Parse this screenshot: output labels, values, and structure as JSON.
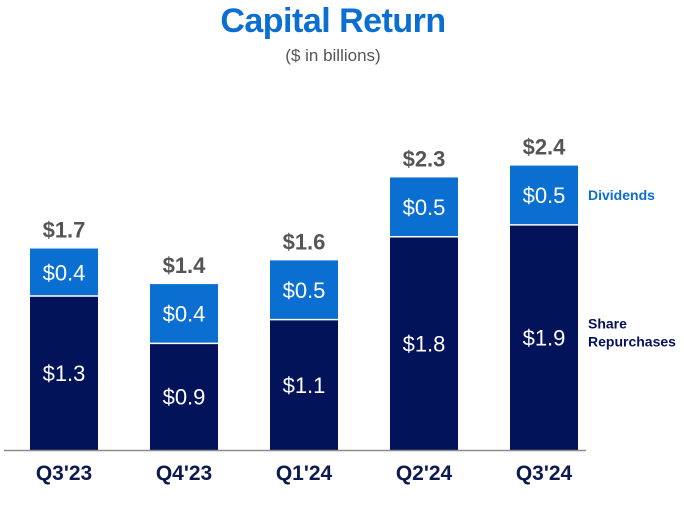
{
  "header": {
    "title": "Capital Return",
    "subtitle": "($ in billions)"
  },
  "colors": {
    "share_repurchases": "#03135a",
    "dividends": "#0a6fd1",
    "axis": "#8c8c8c",
    "total_label": "#555555",
    "category_label": "#0c1a4e"
  },
  "chart_data": {
    "type": "bar",
    "stacked": true,
    "title": "Capital Return",
    "subtitle": "($ in billions)",
    "categories": [
      "Q3'23",
      "Q4'23",
      "Q1'24",
      "Q2'24",
      "Q3'24"
    ],
    "series": [
      {
        "name": "Share Repurchases",
        "values": [
          1.3,
          0.9,
          1.1,
          1.8,
          1.9
        ],
        "labels": [
          "$1.3",
          "$0.9",
          "$1.1",
          "$1.8",
          "$1.9"
        ]
      },
      {
        "name": "Dividends",
        "values": [
          0.4,
          0.4,
          0.5,
          0.5,
          0.5
        ],
        "labels": [
          "$0.4",
          "$0.4",
          "$0.5",
          "$0.5",
          "$0.5"
        ]
      }
    ],
    "totals": [
      1.7,
      1.4,
      1.6,
      2.3,
      2.4
    ],
    "total_labels": [
      "$1.7",
      "$1.4",
      "$1.6",
      "$2.3",
      "$2.4"
    ],
    "legend": {
      "dividends": "Dividends",
      "share_repurchases_line1": "Share",
      "share_repurchases_line2": "Repurchases"
    },
    "ylim": [
      0,
      2.4
    ],
    "grid": false,
    "legend_placement": "right"
  }
}
